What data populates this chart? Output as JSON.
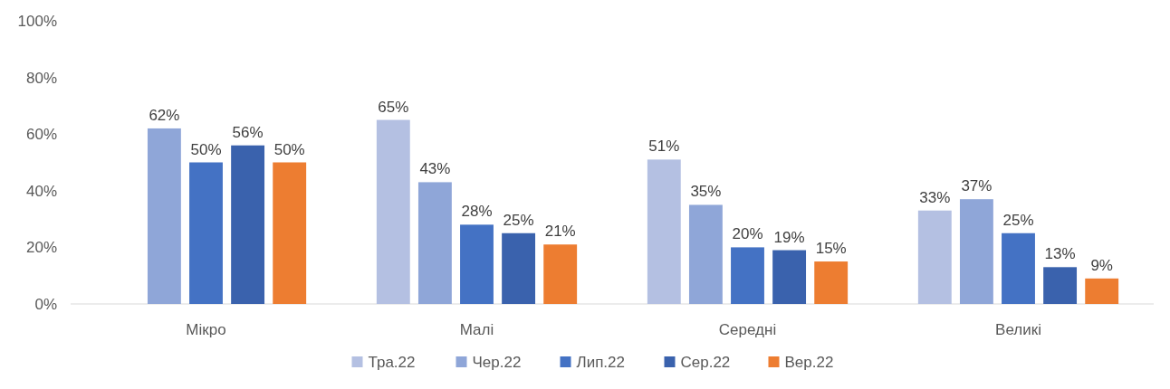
{
  "chart_data": {
    "type": "bar",
    "categories": [
      "Мікро",
      "Малі",
      "Середні",
      "Великі"
    ],
    "series": [
      {
        "name": "Тра.22",
        "color": "#b4c0e2",
        "values": [
          null,
          65,
          51,
          33
        ],
        "value_labels": [
          null,
          "65%",
          "51%",
          "33%"
        ]
      },
      {
        "name": "Чер.22",
        "color": "#8fa6d8",
        "values": [
          62,
          43,
          35,
          37
        ],
        "value_labels": [
          "62%",
          "43%",
          "35%",
          "37%"
        ]
      },
      {
        "name": "Лип.22",
        "color": "#4472c4",
        "values": [
          50,
          28,
          20,
          25
        ],
        "value_labels": [
          "50%",
          "28%",
          "20%",
          "25%"
        ]
      },
      {
        "name": "Сер.22",
        "color": "#3a62ad",
        "values": [
          56,
          25,
          19,
          13
        ],
        "value_labels": [
          "56%",
          "25%",
          "19%",
          "13%"
        ]
      },
      {
        "name": "Вер.22",
        "color": "#ed7d31",
        "values": [
          50,
          21,
          15,
          9
        ],
        "value_labels": [
          "50%",
          "21%",
          "15%",
          "9%"
        ]
      }
    ],
    "ylim": [
      0,
      100
    ],
    "yticks": [
      {
        "value": 0,
        "label": "0%"
      },
      {
        "value": 20,
        "label": "20%"
      },
      {
        "value": 40,
        "label": "40%"
      },
      {
        "value": 60,
        "label": "60%"
      },
      {
        "value": 80,
        "label": "80%"
      },
      {
        "value": 100,
        "label": "100%"
      }
    ],
    "legend": "bottom",
    "grid": false
  }
}
